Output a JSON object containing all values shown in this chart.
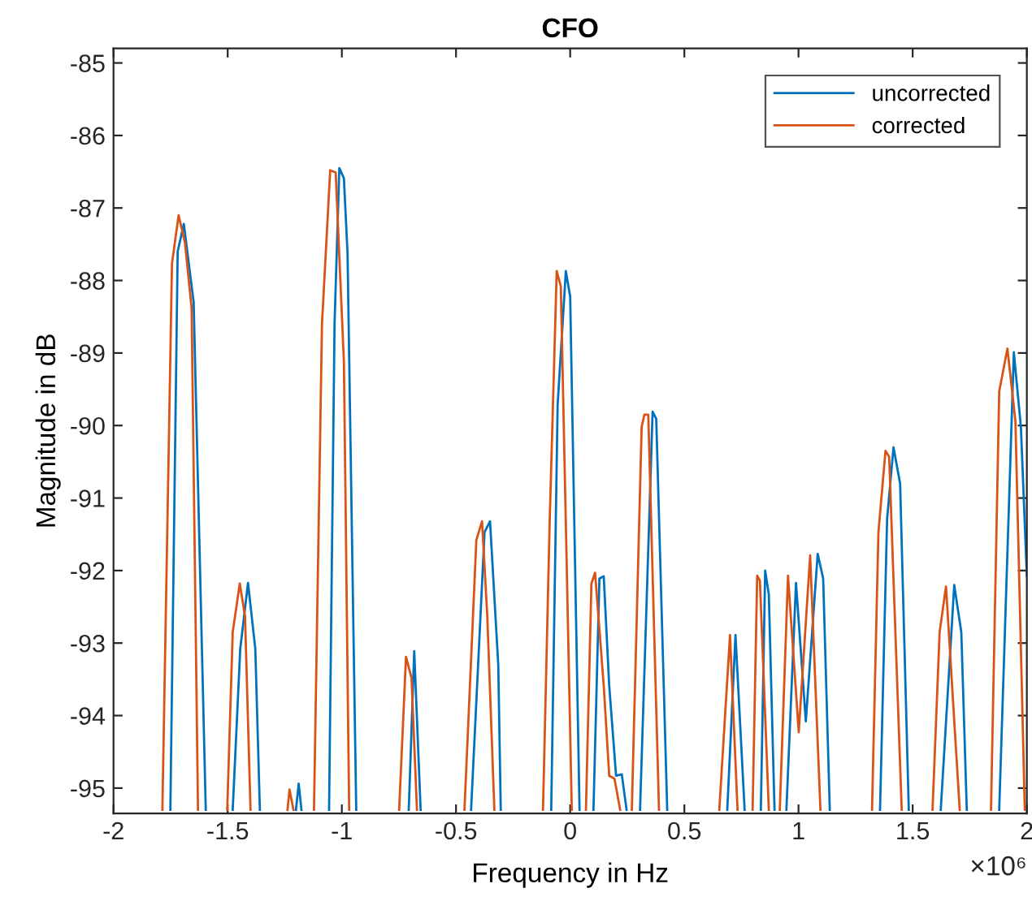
{
  "chart_data": {
    "type": "line",
    "title": "CFO",
    "xlabel": "Frequency in Hz",
    "ylabel": "Magnitude in dB",
    "annotations": [
      "×10⁶"
    ],
    "xlim": [
      -2,
      2
    ],
    "xticks": [
      -2,
      -1.5,
      -1,
      -0.5,
      0,
      0.5,
      1,
      1.5,
      2
    ],
    "ylim": [
      -95.35,
      -84.8
    ],
    "yticks": [
      -95,
      -94,
      -93,
      -92,
      -91,
      -90,
      -89,
      -88,
      -87,
      -86,
      -85
    ],
    "grid": false,
    "legend": "top right",
    "marker": "none",
    "line_style": "solid",
    "series": [
      {
        "name": "uncorrected",
        "color": "#0072bd",
        "x": [
          -1.751,
          -1.719,
          -1.692,
          -1.649,
          -1.596,
          null,
          -1.478,
          -1.445,
          -1.411,
          -1.379,
          -1.359,
          null,
          -1.201,
          -1.189,
          -1.177,
          null,
          -1.056,
          -1.032,
          -1.011,
          -0.991,
          -0.975,
          -0.937,
          null,
          -0.707,
          -0.683,
          -0.655,
          null,
          -0.434,
          -0.375,
          -0.351,
          -0.315,
          -0.304,
          null,
          -0.083,
          -0.055,
          -0.019,
          0.0,
          0.041,
          null,
          0.102,
          0.128,
          0.147,
          0.171,
          0.201,
          0.226,
          0.247,
          null,
          0.306,
          0.361,
          0.377,
          0.425,
          null,
          0.688,
          0.724,
          0.764,
          null,
          0.835,
          0.854,
          0.87,
          0.895,
          null,
          0.947,
          0.989,
          1.032,
          1.084,
          1.108,
          1.137,
          null,
          1.357,
          1.388,
          1.416,
          1.445,
          1.483,
          null,
          1.623,
          1.682,
          1.713,
          1.737,
          null,
          1.879,
          1.943,
          1.974,
          2.0
        ],
        "values": [
          -95.3,
          -87.6,
          -87.22,
          -88.3,
          -95.3,
          null,
          -95.3,
          -93.08,
          -92.17,
          -93.08,
          -95.3,
          null,
          -95.3,
          -94.94,
          -95.3,
          null,
          -95.3,
          -88.6,
          -86.45,
          -86.59,
          -87.63,
          -95.3,
          null,
          -95.3,
          -93.11,
          -95.3,
          null,
          -95.3,
          -91.47,
          -91.32,
          -93.3,
          -95.3,
          null,
          -95.3,
          -89.72,
          -87.87,
          -88.22,
          -95.3,
          null,
          -95.3,
          -92.11,
          -92.08,
          -93.59,
          -94.83,
          -94.81,
          -95.3,
          null,
          -95.3,
          -89.81,
          -89.91,
          -95.3,
          null,
          -95.3,
          -92.89,
          -95.3,
          null,
          -95.3,
          -92.0,
          -92.33,
          -95.3,
          null,
          -95.3,
          -92.17,
          -94.08,
          -91.77,
          -92.11,
          -95.3,
          null,
          -95.3,
          -91.29,
          -90.3,
          -90.8,
          -95.3,
          null,
          -95.3,
          -92.2,
          -92.85,
          -95.3,
          null,
          -95.3,
          -88.99,
          -90.02,
          -92.07
        ]
      },
      {
        "name": "corrected",
        "color": "#d95319",
        "x": [
          -1.786,
          -1.744,
          -1.715,
          -1.687,
          -1.658,
          -1.63,
          null,
          -1.502,
          -1.478,
          -1.447,
          -1.424,
          -1.4,
          null,
          -1.238,
          -1.229,
          -1.212,
          null,
          -1.122,
          -1.087,
          -1.051,
          -1.027,
          -0.991,
          -0.968,
          null,
          -0.749,
          -0.719,
          -0.695,
          -0.671,
          null,
          -0.463,
          -0.411,
          -0.386,
          -0.363,
          -0.332,
          null,
          -0.119,
          -0.09,
          -0.059,
          -0.041,
          -0.019,
          0.007,
          null,
          0.069,
          0.093,
          0.109,
          0.147,
          0.171,
          0.194,
          0.219,
          null,
          0.27,
          0.313,
          0.325,
          0.342,
          0.389,
          null,
          0.653,
          0.7,
          0.733,
          null,
          0.799,
          0.819,
          0.831,
          0.87,
          null,
          0.918,
          0.954,
          1.001,
          1.051,
          1.096,
          null,
          1.322,
          1.35,
          1.381,
          1.397,
          1.452,
          null,
          1.587,
          1.618,
          1.646,
          1.706,
          null,
          1.843,
          1.879,
          1.915,
          1.95,
          1.991
        ],
        "values": [
          -95.3,
          -87.77,
          -87.1,
          -87.48,
          -88.38,
          -95.3,
          null,
          -95.3,
          -92.85,
          -92.18,
          -92.63,
          -95.3,
          null,
          -95.3,
          -95.02,
          -95.3,
          null,
          -95.3,
          -88.6,
          -86.48,
          -86.51,
          -89.12,
          -95.3,
          null,
          -95.3,
          -93.19,
          -93.48,
          -95.3,
          null,
          -95.3,
          -91.58,
          -91.32,
          -92.63,
          -95.3,
          null,
          -95.3,
          -91.35,
          -87.87,
          -88.08,
          -91.35,
          -95.3,
          null,
          -95.3,
          -92.18,
          -92.03,
          -93.59,
          -94.83,
          -94.87,
          -95.3,
          null,
          -95.3,
          -90.02,
          -89.85,
          -89.85,
          -95.3,
          null,
          -95.3,
          -92.89,
          -95.3,
          null,
          -95.3,
          -92.07,
          -92.14,
          -95.3,
          null,
          -95.3,
          -92.07,
          -94.23,
          -91.79,
          -95.3,
          null,
          -95.3,
          -91.47,
          -90.35,
          -90.43,
          -95.3,
          null,
          -95.3,
          -92.85,
          -92.22,
          -95.3,
          null,
          -95.3,
          -89.53,
          -88.94,
          -89.94,
          -95.3
        ]
      }
    ]
  }
}
